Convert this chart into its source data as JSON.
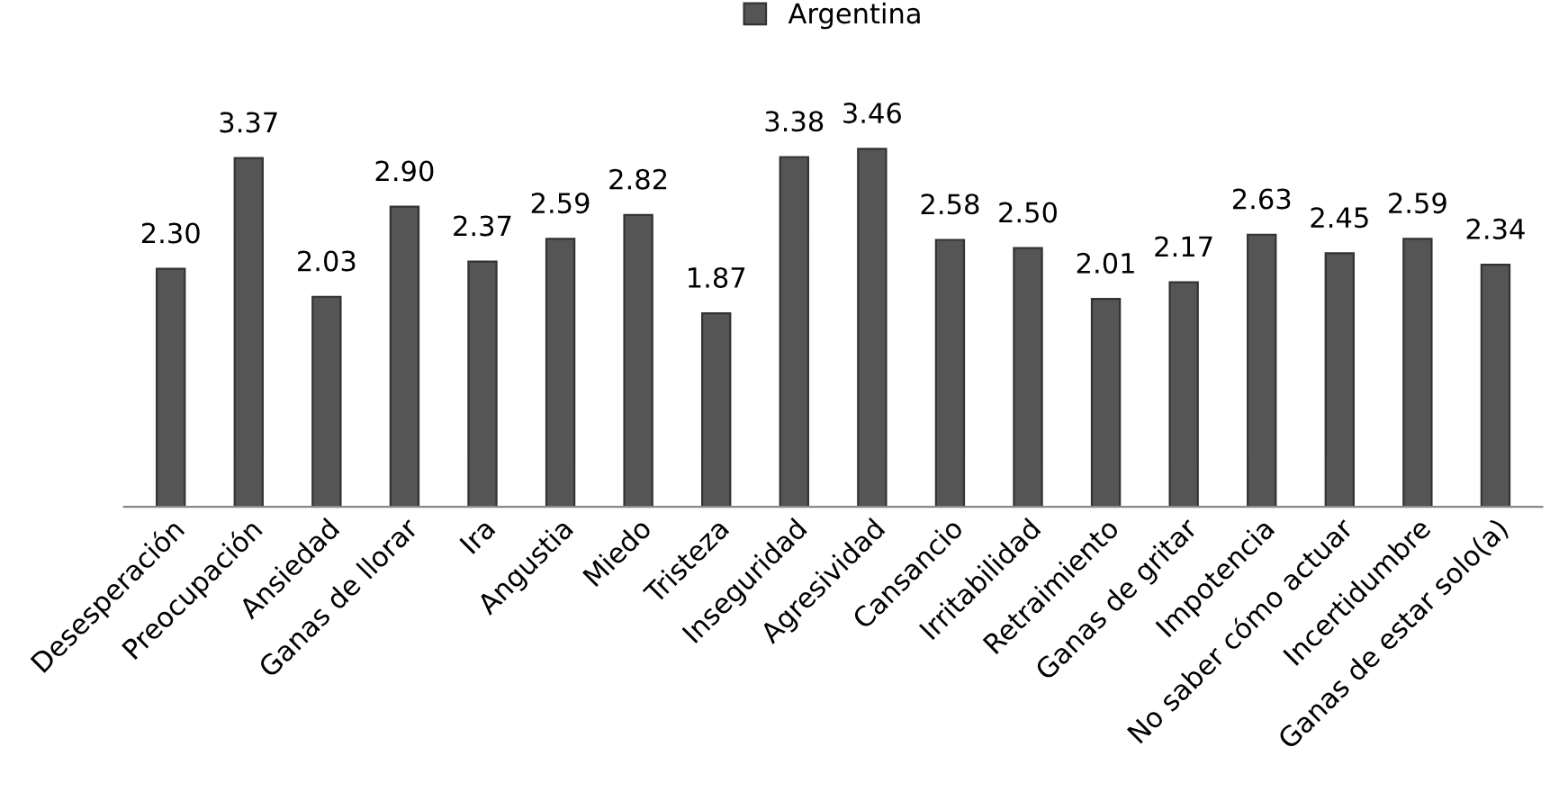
{
  "chart_data": {
    "type": "bar",
    "categories": [
      "Desesperación",
      "Preocupación",
      "Ansiedad",
      "Ganas de llorar",
      "Ira",
      "Angustia",
      "Miedo",
      "Tristeza",
      "Inseguridad",
      "Agresividad",
      "Cansancio",
      "Irritabilidad",
      "Retraimiento",
      "Ganas de gritar",
      "Impotencia",
      "No saber cómo actuar",
      "Incertidumbre",
      "Ganas de estar solo(a)"
    ],
    "series": [
      {
        "name": "Argentina",
        "color": "#555555",
        "values": [
          2.3,
          3.37,
          2.03,
          2.9,
          2.37,
          2.59,
          2.82,
          1.87,
          3.38,
          3.46,
          2.58,
          2.5,
          2.01,
          2.17,
          2.63,
          2.45,
          2.59,
          2.34
        ],
        "value_labels": [
          "2.30",
          "3.37",
          "2.03",
          "2.90",
          "2.37",
          "2.59",
          "2.82",
          "1.87",
          "3.38",
          "3.46",
          "2.58",
          "2.50",
          "2.01",
          "2.17",
          "2.63",
          "2.45",
          "2.59",
          "2.34"
        ]
      }
    ],
    "tick_labels": "x",
    "grid": false,
    "legend": "top"
  }
}
